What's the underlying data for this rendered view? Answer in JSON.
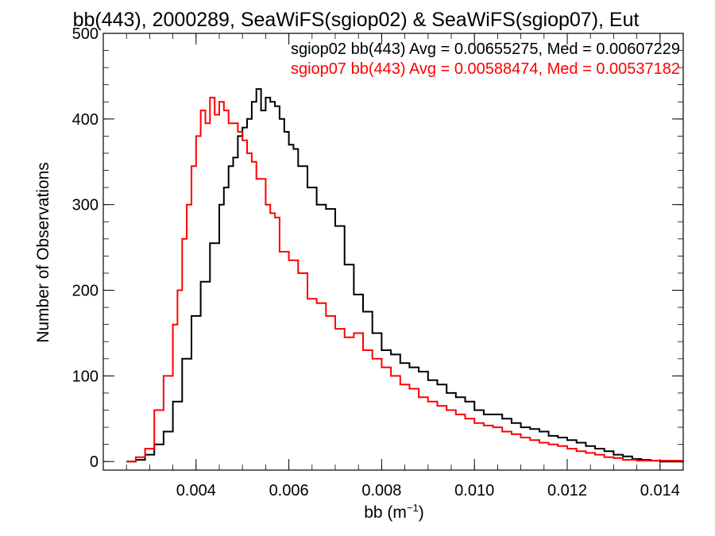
{
  "chart_data": {
    "type": "line",
    "step": true,
    "title": "bb(443), 2000289, SeaWiFS(sgiop02) & SeaWiFS(sgiop07), Eut",
    "xlabel_base": "bb (m",
    "xlabel_sup": "−1",
    "xlabel_tail": ")",
    "ylabel": "Number of Observations",
    "xlim": [
      0.002,
      0.0145
    ],
    "ylim": [
      -10,
      500
    ],
    "x_ticks": [
      0.004,
      0.006,
      0.008,
      0.01,
      0.012,
      0.014
    ],
    "x_tick_labels": [
      "0.004",
      "0.006",
      "0.008",
      "0.010",
      "0.012",
      "0.014"
    ],
    "y_ticks": [
      0,
      100,
      200,
      300,
      400,
      500
    ],
    "y_tick_labels": [
      "0",
      "100",
      "200",
      "300",
      "400",
      "500"
    ],
    "grid": false,
    "legend_position": "top-right",
    "series": [
      {
        "name": "sgiop02 bb(443) Avg = 0.00655275, Med = 0.00607229",
        "color": "#000000",
        "x": [
          0.0025,
          0.0027,
          0.0029,
          0.0031,
          0.0033,
          0.0035,
          0.0037,
          0.0039,
          0.0041,
          0.0043,
          0.0045,
          0.0046,
          0.0047,
          0.0048,
          0.0049,
          0.005,
          0.0051,
          0.0052,
          0.0053,
          0.0054,
          0.0055,
          0.0056,
          0.0057,
          0.0058,
          0.0059,
          0.006,
          0.0061,
          0.0062,
          0.0064,
          0.0066,
          0.0068,
          0.007,
          0.0072,
          0.0074,
          0.0076,
          0.0078,
          0.008,
          0.0082,
          0.0084,
          0.0086,
          0.0088,
          0.009,
          0.0092,
          0.0094,
          0.0096,
          0.0098,
          0.01,
          0.0102,
          0.0104,
          0.0106,
          0.0108,
          0.011,
          0.0112,
          0.0114,
          0.0116,
          0.0118,
          0.012,
          0.0122,
          0.0124,
          0.0126,
          0.0128,
          0.013,
          0.0132,
          0.0134,
          0.0136,
          0.0138,
          0.014,
          0.0145
        ],
        "y": [
          0,
          2,
          8,
          20,
          35,
          70,
          120,
          170,
          210,
          255,
          300,
          320,
          345,
          355,
          380,
          390,
          400,
          420,
          435,
          410,
          425,
          420,
          415,
          400,
          385,
          370,
          365,
          345,
          320,
          300,
          295,
          275,
          230,
          195,
          175,
          150,
          130,
          125,
          115,
          110,
          105,
          95,
          90,
          80,
          75,
          70,
          60,
          55,
          55,
          50,
          45,
          40,
          38,
          35,
          30,
          28,
          25,
          22,
          18,
          15,
          12,
          8,
          6,
          3,
          2,
          1,
          0,
          0
        ]
      },
      {
        "name": "sgiop07 bb(443) Avg = 0.00588474, Med = 0.00537182",
        "color": "#ff0000",
        "x": [
          0.0025,
          0.0027,
          0.0029,
          0.0031,
          0.0033,
          0.0035,
          0.0036,
          0.0037,
          0.0038,
          0.0039,
          0.004,
          0.0041,
          0.0042,
          0.0043,
          0.0044,
          0.0045,
          0.0046,
          0.0047,
          0.0048,
          0.0049,
          0.005,
          0.0051,
          0.0052,
          0.0053,
          0.0054,
          0.0055,
          0.0056,
          0.0057,
          0.0058,
          0.006,
          0.0062,
          0.0064,
          0.0066,
          0.0068,
          0.007,
          0.0072,
          0.0074,
          0.0076,
          0.0078,
          0.008,
          0.0082,
          0.0084,
          0.0086,
          0.0088,
          0.009,
          0.0092,
          0.0094,
          0.0096,
          0.0098,
          0.01,
          0.0102,
          0.0104,
          0.0106,
          0.0108,
          0.011,
          0.0112,
          0.0114,
          0.0116,
          0.0118,
          0.012,
          0.0122,
          0.0124,
          0.0126,
          0.0128,
          0.013,
          0.0132,
          0.0135,
          0.0145
        ],
        "y": [
          0,
          5,
          15,
          60,
          100,
          160,
          200,
          260,
          300,
          345,
          380,
          410,
          395,
          425,
          405,
          420,
          410,
          395,
          395,
          385,
          375,
          360,
          350,
          330,
          330,
          300,
          290,
          285,
          245,
          235,
          220,
          190,
          185,
          170,
          155,
          145,
          150,
          130,
          120,
          110,
          100,
          90,
          85,
          75,
          70,
          65,
          60,
          55,
          50,
          45,
          42,
          40,
          35,
          32,
          28,
          25,
          22,
          20,
          18,
          15,
          12,
          10,
          8,
          5,
          4,
          2,
          1,
          0
        ]
      }
    ]
  }
}
